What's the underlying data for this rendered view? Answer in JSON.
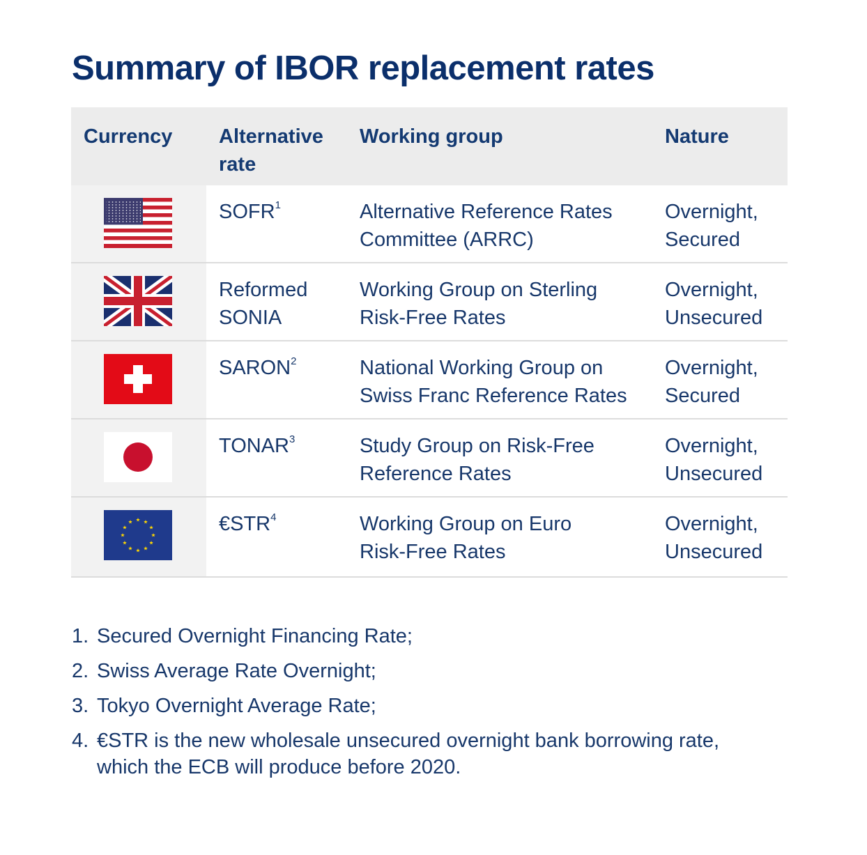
{
  "title": "Summary of IBOR replacement rates",
  "headers": {
    "currency": "Currency",
    "alt_rate": "Alternative\nrate",
    "working_group": "Working group",
    "nature": "Nature"
  },
  "rows": [
    {
      "flag": "us-flag-icon",
      "rate": "SOFR",
      "sup": "1",
      "group": "Alternative Reference Rates\nCommittee (ARRC)",
      "nature": "Overnight,\nSecured"
    },
    {
      "flag": "uk-flag-icon",
      "rate": "Reformed\nSONIA",
      "sup": "",
      "group": "Working Group on Sterling\nRisk-Free Rates",
      "nature": "Overnight,\nUnsecured"
    },
    {
      "flag": "swiss-flag-icon",
      "rate": "SARON",
      "sup": "2",
      "group": "National Working Group on\nSwiss Franc Reference Rates",
      "nature": "Overnight,\nSecured"
    },
    {
      "flag": "japan-flag-icon",
      "rate": "TONAR",
      "sup": "3",
      "group": "Study Group on Risk-Free\nReference Rates",
      "nature": "Overnight,\nUnsecured"
    },
    {
      "flag": "eu-flag-icon",
      "rate": "€STR",
      "sup": "4",
      "group": "Working Group on Euro\nRisk-Free Rates",
      "nature": "Overnight,\nUnsecured"
    }
  ],
  "notes": [
    {
      "num": "1.",
      "text": "Secured Overnight Financing Rate;"
    },
    {
      "num": "2.",
      "text": "Swiss Average Rate Overnight;"
    },
    {
      "num": "3.",
      "text": "Tokyo Overnight Average Rate;"
    },
    {
      "num": "4.",
      "text": "€STR is the new wholesale unsecured overnight bank borrowing rate, which the ECB will produce before 2020."
    }
  ],
  "colors": {
    "title": "#0b2f6b",
    "header_bg": "#ececec",
    "us_red": "#c8202f",
    "us_blue": "#3c3b6e",
    "uk_blue": "#1a2f6e",
    "swiss_red": "#e30b17",
    "japan_red": "#c8102e",
    "eu_blue": "#1f3a8c",
    "eu_gold": "#ffd700"
  }
}
